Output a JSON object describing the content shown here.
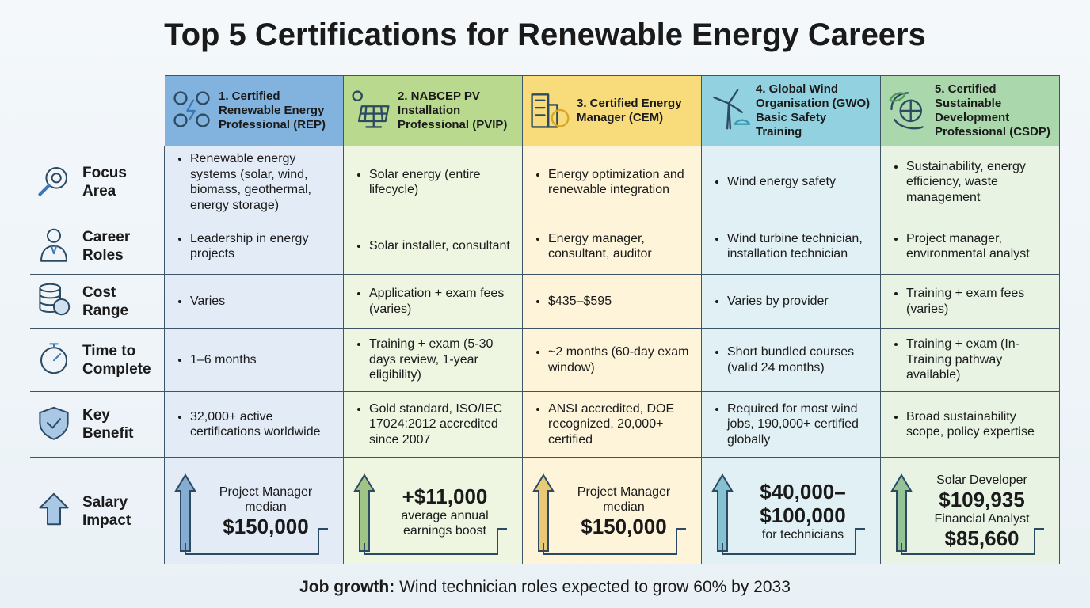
{
  "header": {
    "title": "Top 5 Certifications for Renewable Energy Careers"
  },
  "columns": [
    {
      "title": "1. Certified Renewable Energy Professional (REP)"
    },
    {
      "title": "2. NABCEP PV Installation Professional (PVIP)"
    },
    {
      "title": "3. Certified Energy Manager (CEM)"
    },
    {
      "title": "4. Global Wind Organisation (GWO) Basic Safety Training"
    },
    {
      "title": "5. Certified Sustainable Development Professional (CSDP)"
    }
  ],
  "rows": [
    {
      "label": "Focus Area",
      "cells": [
        "Renewable energy systems (solar, wind, biomass, geothermal, energy storage)",
        "Solar energy (entire lifecycle)",
        "Energy optimization and renewable integration",
        "Wind energy safety",
        "Sustainability, energy efficiency, waste management"
      ]
    },
    {
      "label": "Career Roles",
      "cells": [
        "Leadership in energy projects",
        "Solar installer, consultant",
        "Energy manager, consultant, auditor",
        "Wind turbine technician, installation technician",
        "Project manager, environmental analyst"
      ]
    },
    {
      "label": "Cost Range",
      "cells": [
        "Varies",
        "Application + exam fees (varies)",
        "$435–$595",
        "Varies by provider",
        "Training + exam fees (varies)"
      ]
    },
    {
      "label": "Time to Complete",
      "cells": [
        "1–6 months",
        "Training + exam (5-30 days review, 1-year eligibility)",
        "~2 months (60-day exam window)",
        "Short bundled courses (valid 24 months)",
        "Training + exam (In-Training pathway available)"
      ]
    },
    {
      "label": "Key Benefit",
      "cells": [
        "32,000+ active certifications worldwide",
        "Gold standard, ISO/IEC 17024:2012 accredited since 2007",
        "ANSI accredited, DOE recognized, 20,000+ certified",
        "Required for most wind jobs, 190,000+ certified globally",
        "Broad sustainability scope, policy expertise"
      ]
    }
  ],
  "salary_row": {
    "label": "Salary Impact",
    "cells": [
      [
        {
          "text": "Project Manager median",
          "bold": false
        },
        {
          "text": "$150,000",
          "bold": true
        }
      ],
      [
        {
          "text": "+$11,000",
          "bold": true
        },
        {
          "text": "average annual earnings boost",
          "bold": false
        }
      ],
      [
        {
          "text": "Project Manager median",
          "bold": false
        },
        {
          "text": "$150,000",
          "bold": true
        }
      ],
      [
        {
          "text": "$40,000–$100,000",
          "bold": true
        },
        {
          "text": "for technicians",
          "bold": false
        }
      ],
      [
        {
          "text": "Solar Developer",
          "bold": false
        },
        {
          "text": "$109,935",
          "bold": true
        },
        {
          "text": "Financial Analyst",
          "bold": false
        },
        {
          "text": "$85,660",
          "bold": true
        }
      ]
    ]
  },
  "footer": {
    "lead": "Job growth:",
    "text": "Wind technician roles expected to grow 60% by 2033"
  }
}
